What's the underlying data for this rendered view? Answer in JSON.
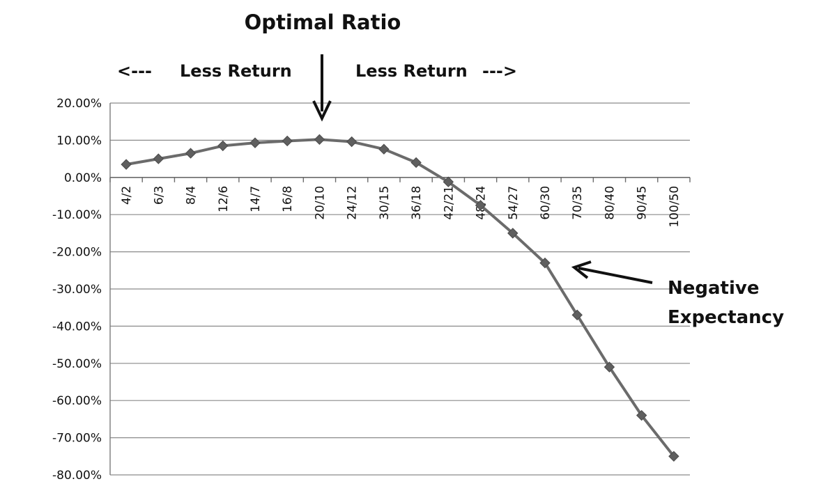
{
  "chart_data": {
    "type": "line",
    "title": "",
    "xlabel": "",
    "ylabel": "",
    "categories": [
      "4/2",
      "6/3",
      "8/4",
      "12/6",
      "14/7",
      "16/8",
      "20/10",
      "24/12",
      "30/15",
      "36/18",
      "42/21",
      "48/24",
      "54/27",
      "60/30",
      "70/35",
      "80/40",
      "90/45",
      "100/50"
    ],
    "series": [
      {
        "name": "",
        "values": [
          3.5,
          5.0,
          6.5,
          8.5,
          9.3,
          9.8,
          10.2,
          9.6,
          7.6,
          4.0,
          -1.2,
          -7.5,
          -15.0,
          -23.0,
          -37.0,
          -51.0,
          -64.0,
          -75.0
        ]
      }
    ],
    "ylim": [
      -80,
      20
    ],
    "ytick_step": 10,
    "ytick_labels": [
      "20.00%",
      "10.00%",
      "0.00%",
      "-10.00%",
      "-20.00%",
      "-30.00%",
      "-40.00%",
      "-50.00%",
      "-60.00%",
      "-70.00%",
      "-80.00%"
    ],
    "grid": true,
    "line_color": "#6b6b6b",
    "marker": "diamond",
    "annotations": {
      "optimal": "Optimal Ratio",
      "less_return_left_arrow": "<---",
      "less_return_left_text": "Less Return",
      "less_return_right_text": "Less Return",
      "less_return_right_arrow": "--->",
      "negative_line1": "Negative",
      "negative_line2": "Expectancy"
    }
  }
}
